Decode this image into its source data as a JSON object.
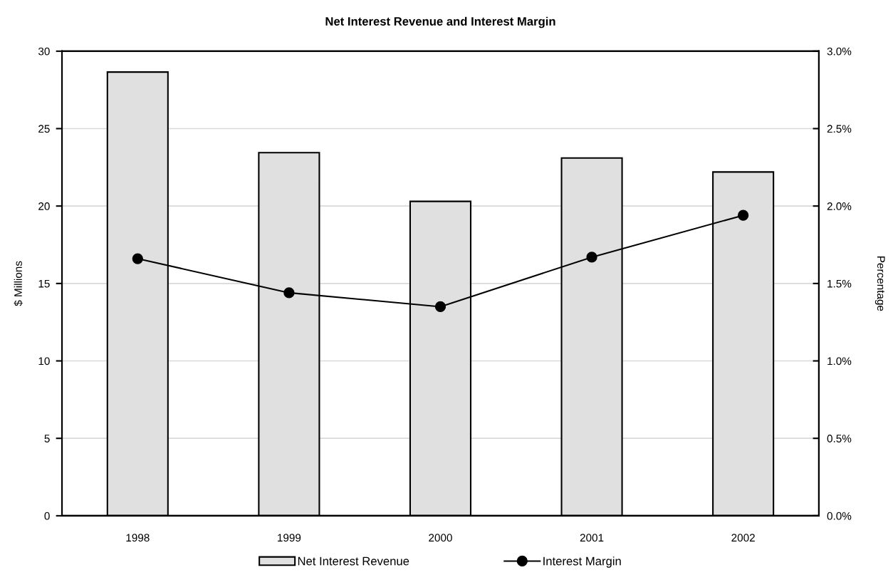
{
  "chart_data": {
    "type": "bar",
    "title": "Net Interest Revenue and Interest Margin",
    "ylabel": "$ Millions",
    "y2label": "Percentage",
    "categories": [
      "1998",
      "1999",
      "2000",
      "2001",
      "2002"
    ],
    "series": [
      {
        "name": "Net Interest Revenue",
        "color": "#e0e0e0",
        "values": [
          28.65,
          23.45,
          20.3,
          23.1,
          22.2
        ]
      },
      {
        "name": "Interest Margin",
        "type": "line",
        "axis": "y2",
        "color": "#000000",
        "marker": "circle",
        "line_style": "solid",
        "values": [
          1.66,
          1.44,
          1.35,
          1.67,
          1.94
        ]
      }
    ],
    "ylim": [
      0,
      30
    ],
    "yticks": [
      0,
      5,
      10,
      15,
      20,
      25,
      30
    ],
    "y2lim": [
      0,
      3
    ],
    "y2ticks": [
      {
        "value": 0,
        "label": "0.0%"
      },
      {
        "value": 0.5,
        "label": "0.5%"
      },
      {
        "value": 1,
        "label": "1.0%"
      },
      {
        "value": 1.5,
        "label": "1.5%"
      },
      {
        "value": 2,
        "label": "2.0%"
      },
      {
        "value": 2.5,
        "label": "2.5%"
      },
      {
        "value": 3,
        "label": "3.0%"
      }
    ],
    "grid": "y",
    "legend": "bottom"
  }
}
